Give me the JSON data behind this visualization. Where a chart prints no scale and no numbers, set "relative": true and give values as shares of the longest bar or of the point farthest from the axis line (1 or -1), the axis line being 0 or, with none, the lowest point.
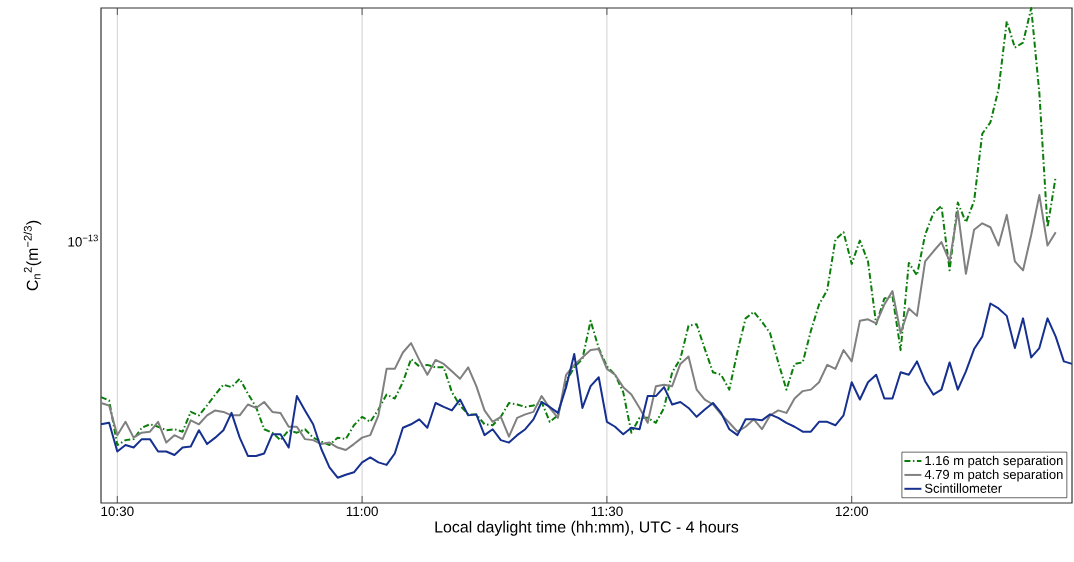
{
  "chart_data": {
    "type": "line",
    "xlabel": "Local daylight time (hh:mm), UTC - 4 hours",
    "ylabel": "C$_{n}$$^{2}$(m$^{−2/3}$)",
    "annotations": [
      "10$^{−13}$"
    ],
    "x": [
      10.4667,
      10.4833,
      10.5,
      10.5167,
      10.5333,
      10.55,
      10.5667,
      10.5833,
      10.6,
      10.6167,
      10.6333,
      10.65,
      10.6667,
      10.6833,
      10.7,
      10.7167,
      10.7333,
      10.75,
      10.7667,
      10.7833,
      10.8,
      10.8167,
      10.8333,
      10.85,
      10.8667,
      10.8833,
      10.9,
      10.9167,
      10.9333,
      10.95,
      10.9667,
      10.9833,
      11.0,
      11.0167,
      11.0333,
      11.05,
      11.0667,
      11.0833,
      11.1,
      11.1167,
      11.1333,
      11.15,
      11.1667,
      11.1833,
      11.2,
      11.2167,
      11.2333,
      11.25,
      11.2667,
      11.2833,
      11.3,
      11.3167,
      11.3333,
      11.35,
      11.3667,
      11.3833,
      11.4,
      11.4167,
      11.4333,
      11.45,
      11.4667,
      11.4833,
      11.5,
      11.5167,
      11.5333,
      11.55,
      11.5667,
      11.5833,
      11.6,
      11.6167,
      11.6333,
      11.65,
      11.6667,
      11.6833,
      11.7,
      11.7167,
      11.7333,
      11.75,
      11.7667,
      11.7833,
      11.8,
      11.8167,
      11.8333,
      11.85,
      11.8667,
      11.8833,
      11.9,
      11.9167,
      11.9333,
      11.95,
      11.9667,
      11.9833,
      12.0,
      12.0167,
      12.0333,
      12.05,
      12.0667,
      12.0833,
      12.1,
      12.1167,
      12.1333,
      12.15,
      12.1667,
      12.1833,
      12.2,
      12.2167,
      12.2333,
      12.25,
      12.2667,
      12.2833,
      12.3,
      12.3167,
      12.3333,
      12.35,
      12.3667,
      12.3833,
      12.4,
      12.4167,
      12.4333,
      12.45
    ],
    "series": [
      {
        "name": "1.16 m patch separation",
        "color": "#0b7d0b",
        "line_style": "dashdot",
        "values": [
          0.214,
          0.207,
          0.117,
          0.127,
          0.129,
          0.152,
          0.159,
          0.154,
          0.147,
          0.149,
          0.144,
          0.184,
          0.177,
          0.197,
          0.219,
          0.239,
          0.234,
          0.251,
          0.221,
          0.194,
          0.149,
          0.142,
          0.127,
          0.147,
          0.142,
          0.149,
          0.132,
          0.124,
          0.117,
          0.132,
          0.129,
          0.157,
          0.174,
          0.164,
          0.189,
          0.219,
          0.211,
          0.244,
          0.291,
          0.276,
          0.279,
          0.274,
          0.274,
          0.224,
          0.197,
          0.179,
          0.179,
          0.159,
          0.157,
          0.174,
          0.202,
          0.199,
          0.194,
          0.197,
          0.204,
          0.164,
          0.177,
          0.246,
          0.274,
          0.291,
          0.368,
          0.313,
          0.276,
          0.259,
          0.224,
          0.142,
          0.172,
          0.172,
          0.162,
          0.192,
          0.264,
          0.291,
          0.358,
          0.361,
          0.311,
          0.264,
          0.259,
          0.229,
          0.306,
          0.373,
          0.386,
          0.366,
          0.343,
          0.284,
          0.229,
          0.281,
          0.284,
          0.348,
          0.401,
          0.43,
          0.532,
          0.547,
          0.483,
          0.53,
          0.488,
          0.361,
          0.413,
          0.418,
          0.309,
          0.485,
          0.46,
          0.542,
          0.585,
          0.6,
          0.47,
          0.607,
          0.567,
          0.61,
          0.746,
          0.769,
          0.836,
          0.973,
          0.92,
          0.93,
          1,
          0.828,
          0.557,
          0.659,
          null,
          null
        ]
      },
      {
        "name": "4.79 m patch separation",
        "color": "#808080",
        "line_style": "solid",
        "values": [
          0.202,
          0.197,
          0.137,
          0.164,
          0.132,
          0.142,
          0.144,
          0.164,
          0.122,
          0.137,
          0.129,
          0.167,
          0.159,
          0.177,
          0.187,
          0.184,
          0.177,
          0.177,
          0.199,
          0.192,
          0.204,
          0.184,
          0.182,
          0.154,
          0.154,
          0.129,
          0.127,
          0.119,
          0.122,
          0.112,
          0.107,
          0.119,
          0.132,
          0.137,
          0.177,
          0.271,
          0.271,
          0.304,
          0.323,
          0.289,
          0.259,
          0.289,
          0.281,
          0.266,
          0.251,
          0.274,
          0.236,
          0.187,
          0.164,
          0.174,
          0.134,
          0.172,
          0.179,
          0.184,
          0.216,
          0.192,
          0.172,
          0.259,
          0.279,
          0.294,
          0.309,
          0.311,
          0.271,
          0.259,
          0.234,
          0.219,
          0.192,
          0.162,
          0.236,
          0.239,
          0.236,
          0.281,
          0.296,
          0.229,
          0.209,
          0.199,
          0.179,
          0.162,
          0.144,
          0.154,
          0.169,
          0.149,
          0.177,
          0.187,
          0.182,
          0.211,
          0.226,
          0.229,
          0.244,
          0.279,
          0.271,
          0.309,
          0.286,
          0.368,
          0.371,
          0.363,
          0.401,
          0.428,
          0.343,
          0.393,
          0.378,
          0.488,
          0.508,
          0.527,
          0.488,
          0.59,
          0.463,
          0.552,
          0.565,
          0.557,
          0.52,
          0.582,
          0.488,
          0.47,
          0.542,
          0.622,
          0.52,
          0.547,
          null,
          null
        ]
      },
      {
        "name": "Scintillometer",
        "color": "#16308f",
        "line_style": "solid",
        "values": [
          0.159,
          0.162,
          0.104,
          0.117,
          0.112,
          0.129,
          0.129,
          0.104,
          0.104,
          0.097,
          0.112,
          0.114,
          0.147,
          0.119,
          0.132,
          0.147,
          0.182,
          0.132,
          0.095,
          0.095,
          0.1,
          0.139,
          0.139,
          0.112,
          0.216,
          0.187,
          0.159,
          0.109,
          0.072,
          0.051,
          0.057,
          0.062,
          0.082,
          0.092,
          0.082,
          0.077,
          0.1,
          0.152,
          0.159,
          0.169,
          0.152,
          0.202,
          0.194,
          0.187,
          0.209,
          0.177,
          0.179,
          0.137,
          0.149,
          0.127,
          0.122,
          0.137,
          0.149,
          0.169,
          0.204,
          0.194,
          0.182,
          0.234,
          0.301,
          0.192,
          0.236,
          0.254,
          0.164,
          0.154,
          0.139,
          0.152,
          0.149,
          0.216,
          0.216,
          0.234,
          0.199,
          0.204,
          0.192,
          0.174,
          0.189,
          0.202,
          0.182,
          0.149,
          0.137,
          0.169,
          0.169,
          0.167,
          0.179,
          0.172,
          0.162,
          0.154,
          0.144,
          0.144,
          0.164,
          0.164,
          0.157,
          0.177,
          0.244,
          0.209,
          0.244,
          0.259,
          0.211,
          0.211,
          0.264,
          0.259,
          0.286,
          0.246,
          0.219,
          0.229,
          0.284,
          0.229,
          0.266,
          0.311,
          0.336,
          0.403,
          0.393,
          0.378,
          0.313,
          0.373,
          0.294,
          0.313,
          0.373,
          0.336,
          0.286,
          0.281
        ]
      }
    ],
    "relative": true,
    "xlim": [
      10.4667,
      12.45
    ],
    "xticks": [
      {
        "value": 10.5,
        "label": "10:30"
      },
      {
        "value": 11.0,
        "label": "11:00"
      },
      {
        "value": 11.5,
        "label": "11:30"
      },
      {
        "value": 12.0,
        "label": "12:00"
      }
    ],
    "grid": "x",
    "legend": "bottom right"
  }
}
